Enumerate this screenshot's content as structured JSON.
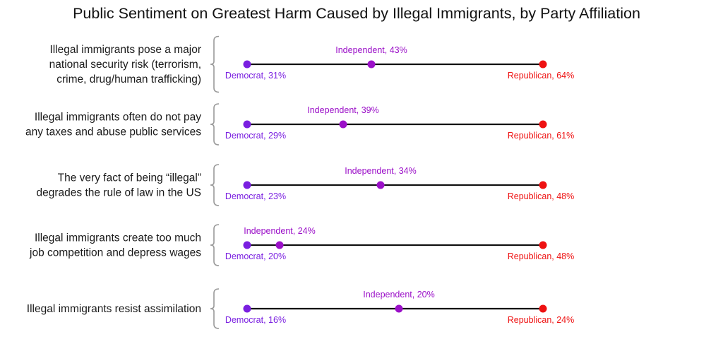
{
  "chart_data": {
    "type": "dot",
    "title": "Public Sentiment on Greatest Harm Caused by Illegal Immigrants, by Party Affiliation",
    "series": [
      {
        "name": "Democrat",
        "color": "#7a1fe0"
      },
      {
        "name": "Independent",
        "color": "#9b10c8"
      },
      {
        "name": "Republican",
        "color": "#ee1111"
      }
    ],
    "categories": [
      {
        "label_lines": [
          "Illegal immigrants pose a major",
          "national security risk (terrorism,",
          "crime, drug/human trafficking)"
        ],
        "values": [
          31,
          43,
          64
        ],
        "value_labels": [
          "Democrat, 31%",
          "Independent, 43%",
          "Republican, 64%"
        ]
      },
      {
        "label_lines": [
          "Illegal immigrants often do not pay",
          "any taxes and abuse public services"
        ],
        "values": [
          29,
          39,
          61
        ],
        "value_labels": [
          "Democrat, 29%",
          "Independent, 39%",
          "Republican, 61%"
        ]
      },
      {
        "label_lines": [
          "The very fact of being “illegal”",
          "degrades the rule of law in the US"
        ],
        "values": [
          23,
          34,
          48
        ],
        "value_labels": [
          "Democrat, 23%",
          "Independent, 34%",
          "Republican, 48%"
        ]
      },
      {
        "label_lines": [
          "Illegal immigrants create too much",
          "job competition and depress wages"
        ],
        "values": [
          20,
          24,
          48
        ],
        "value_labels": [
          "Democrat, 20%",
          "Independent, 24%",
          "Republican, 48%"
        ]
      },
      {
        "label_lines": [
          "Illegal immigrants resist assimilation"
        ],
        "values": [
          16,
          20,
          24
        ],
        "value_labels": [
          "Democrat, 16%",
          "Independent, 20%",
          "Republican, 24%"
        ]
      }
    ]
  }
}
